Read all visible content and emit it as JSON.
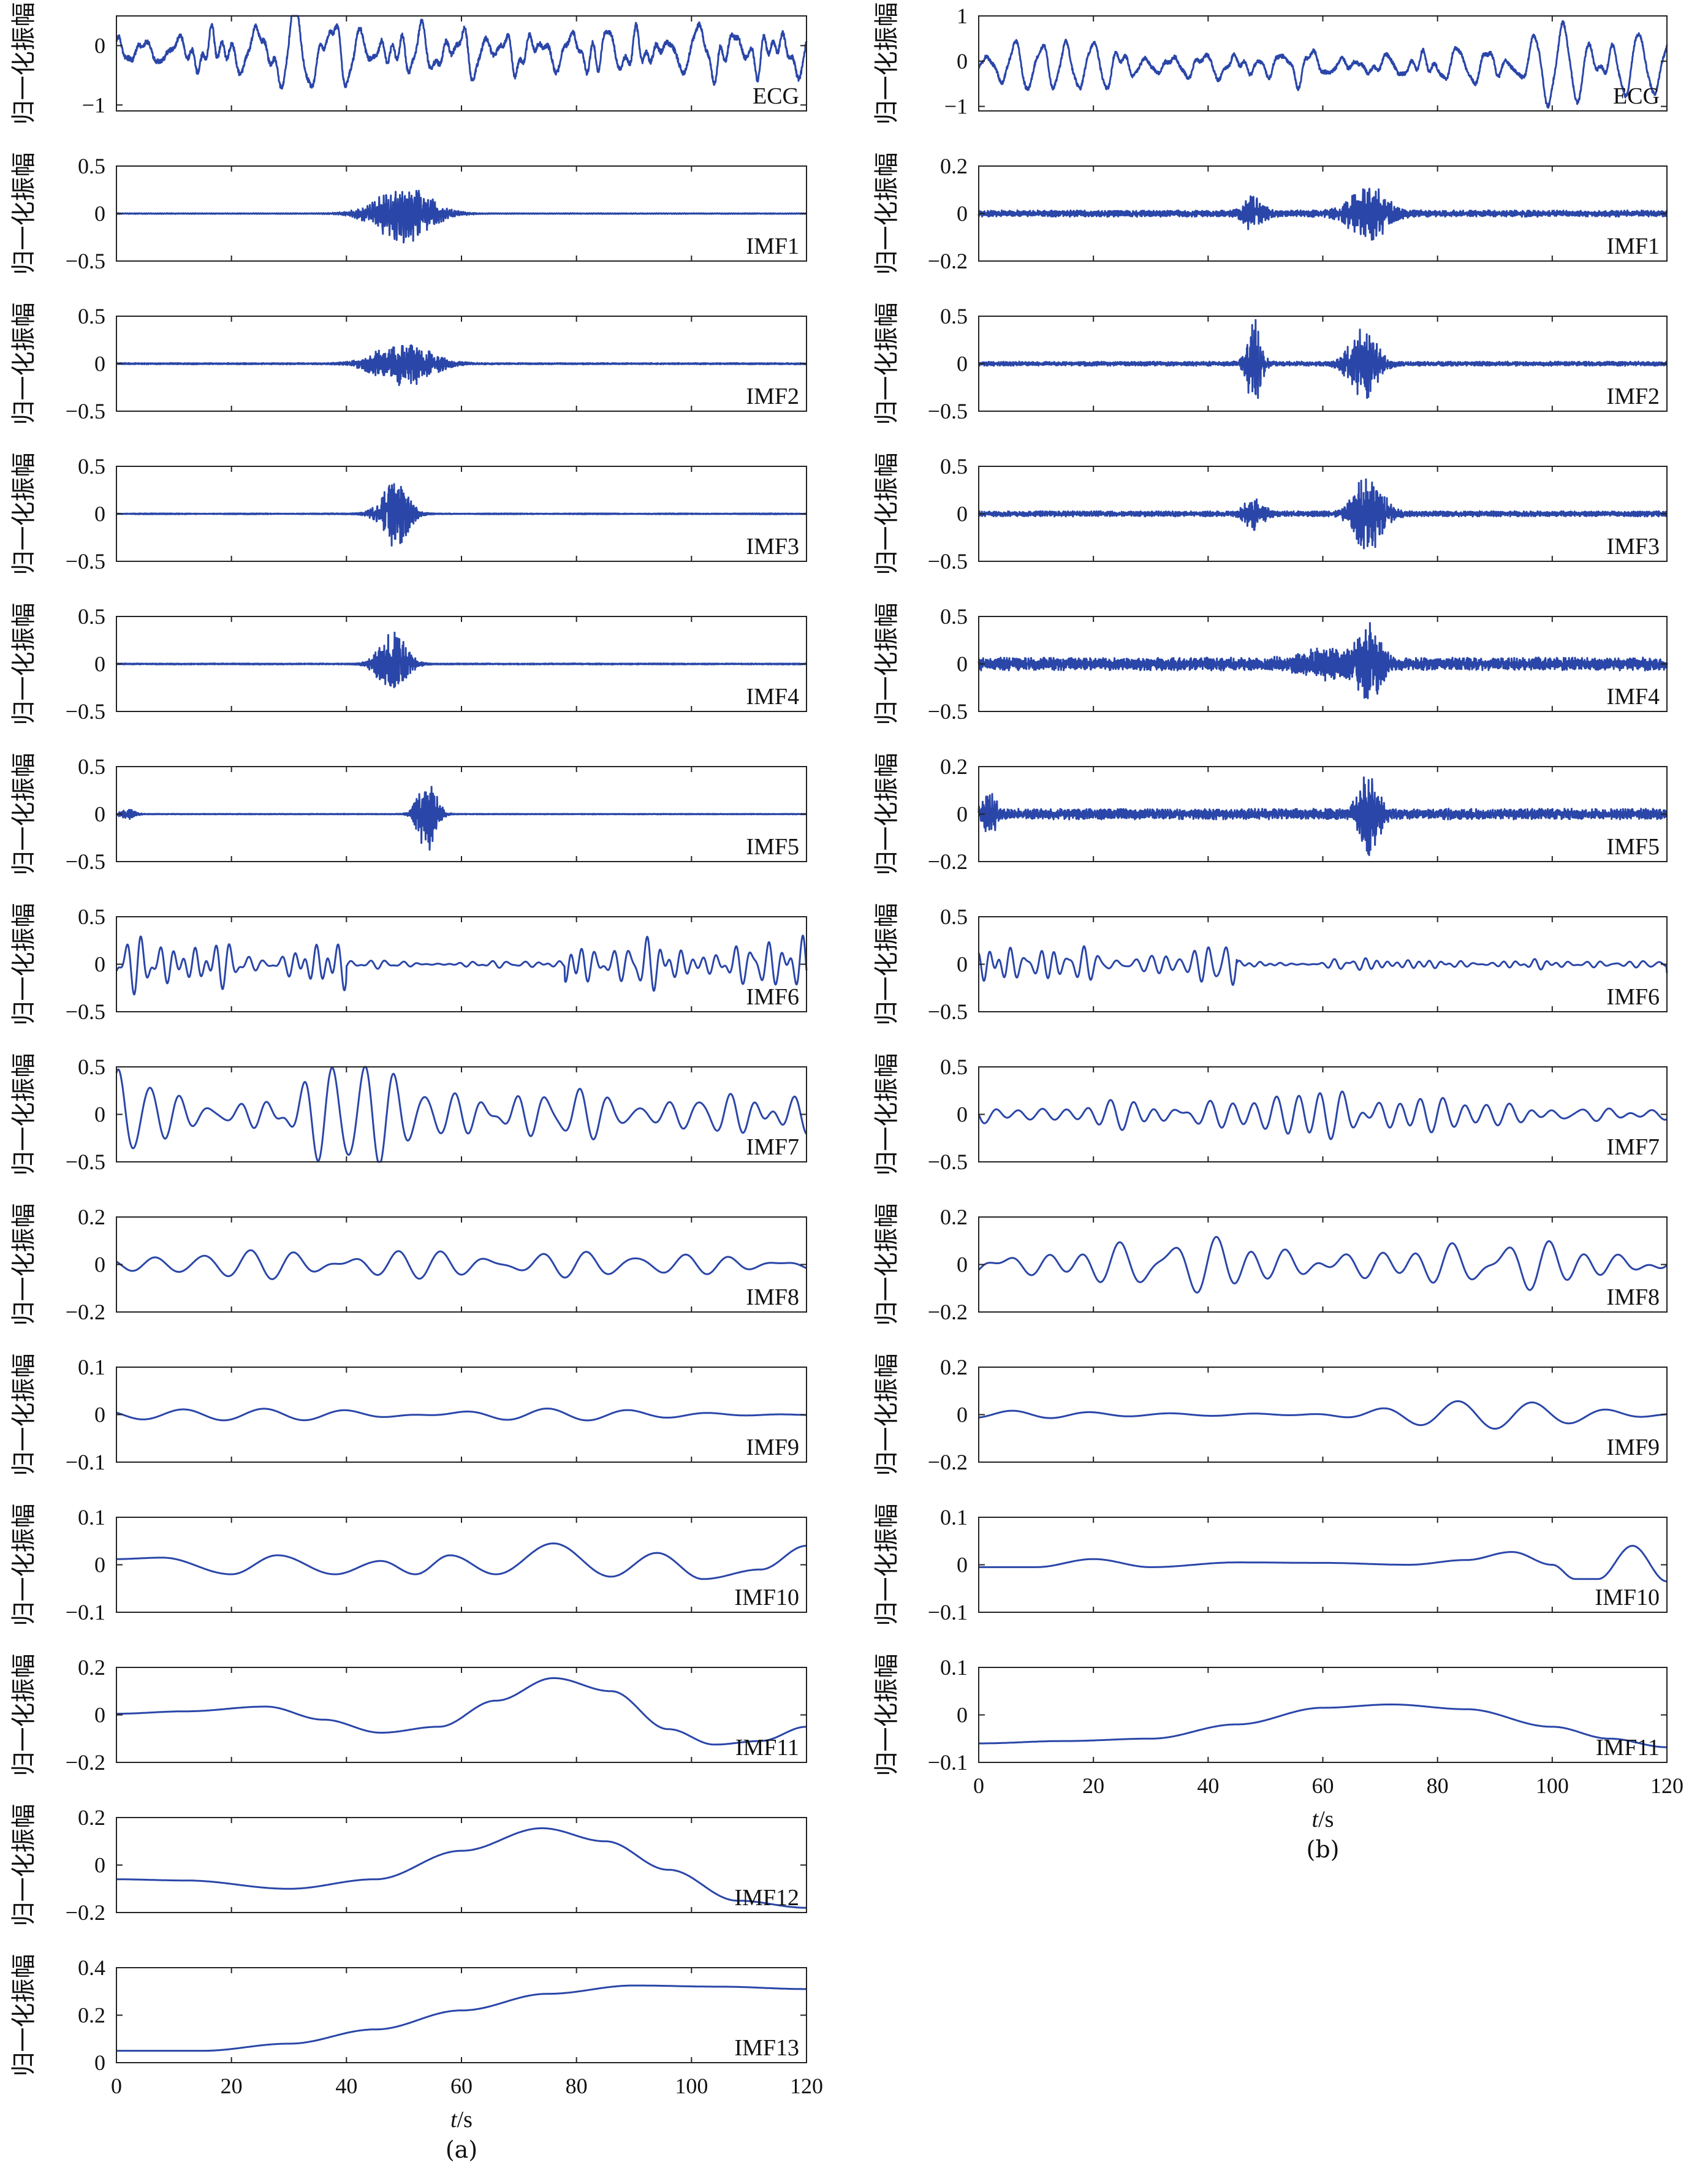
{
  "common": {
    "ylabel": "归一化振幅",
    "xlabel_italic": "t",
    "xlabel_unit": "/s",
    "xlim": [
      0,
      120
    ],
    "xticks": [
      0,
      20,
      40,
      60,
      80,
      100,
      120
    ],
    "line_color": "#2a46a8"
  },
  "columns": [
    {
      "caption": "(a)",
      "panels": [
        {
          "label": "ECG",
          "ylim": [
            -1.1,
            0.5
          ],
          "yticks": [
            {
              "v": 0,
              "t": "0"
            },
            {
              "v": -1,
              "t": "−1"
            }
          ],
          "style": "ecg",
          "amp": 0.8,
          "seed": 11
        },
        {
          "label": "IMF1",
          "ylim": [
            -0.5,
            0.5
          ],
          "yticks": [
            {
              "v": 0.5,
              "t": "0.5"
            },
            {
              "v": 0,
              "t": "0"
            },
            {
              "v": -0.5,
              "t": "−0.5"
            }
          ],
          "style": "burst",
          "bursts": [
            {
              "c": 50,
              "w": 6,
              "a": 0.28
            }
          ],
          "floor": 0.004,
          "freq": 3.2,
          "seed": 21
        },
        {
          "label": "IMF2",
          "ylim": [
            -0.5,
            0.5
          ],
          "yticks": [
            {
              "v": 0.5,
              "t": "0.5"
            },
            {
              "v": 0,
              "t": "0"
            },
            {
              "v": -0.5,
              "t": "−0.5"
            }
          ],
          "style": "burst",
          "bursts": [
            {
              "c": 50,
              "w": 6,
              "a": 0.22
            }
          ],
          "floor": 0.006,
          "freq": 2.4,
          "seed": 22
        },
        {
          "label": "IMF3",
          "ylim": [
            -0.5,
            0.5
          ],
          "yticks": [
            {
              "v": 0.5,
              "t": "0.5"
            },
            {
              "v": 0,
              "t": "0"
            },
            {
              "v": -0.5,
              "t": "−0.5"
            }
          ],
          "style": "burst",
          "bursts": [
            {
              "c": 48,
              "w": 3,
              "a": 0.38
            }
          ],
          "floor": 0.004,
          "freq": 1.8,
          "seed": 23
        },
        {
          "label": "IMF4",
          "ylim": [
            -0.5,
            0.5
          ],
          "yticks": [
            {
              "v": 0.5,
              "t": "0.5"
            },
            {
              "v": 0,
              "t": "0"
            },
            {
              "v": -0.5,
              "t": "−0.5"
            }
          ],
          "style": "burst",
          "bursts": [
            {
              "c": 48,
              "w": 3,
              "a": 0.3
            }
          ],
          "floor": 0.005,
          "freq": 1.2,
          "seed": 24
        },
        {
          "label": "IMF5",
          "ylim": [
            -0.5,
            0.5
          ],
          "yticks": [
            {
              "v": 0.5,
              "t": "0.5"
            },
            {
              "v": 0,
              "t": "0"
            },
            {
              "v": -0.5,
              "t": "−0.5"
            }
          ],
          "style": "burst",
          "bursts": [
            {
              "c": 54,
              "w": 2,
              "a": 0.38
            },
            {
              "c": 2,
              "w": 1.5,
              "a": 0.05
            }
          ],
          "floor": 0.003,
          "freq": 0.7,
          "seed": 25
        },
        {
          "label": "IMF6",
          "ylim": [
            -0.5,
            0.5
          ],
          "yticks": [
            {
              "v": 0.5,
              "t": "0.5"
            },
            {
              "v": 0,
              "t": "0"
            },
            {
              "v": -0.5,
              "t": "−0.5"
            }
          ],
          "style": "wave",
          "amp": 0.28,
          "freq": 0.42,
          "quiet": [
            40,
            78
          ],
          "quietAmp": 0.04,
          "seed": 26
        },
        {
          "label": "IMF7",
          "ylim": [
            -0.5,
            0.5
          ],
          "yticks": [
            {
              "v": 0.5,
              "t": "0.5"
            },
            {
              "v": 0,
              "t": "0"
            },
            {
              "v": -0.5,
              "t": "−0.5"
            }
          ],
          "style": "wave",
          "amp": 0.38,
          "freq": 0.2,
          "seed": 27
        },
        {
          "label": "IMF8",
          "ylim": [
            -0.2,
            0.2
          ],
          "yticks": [
            {
              "v": 0.2,
              "t": "0.2"
            },
            {
              "v": 0,
              "t": "0"
            },
            {
              "v": -0.2,
              "t": "−0.2"
            }
          ],
          "style": "wave",
          "amp": 0.09,
          "freq": 0.12,
          "seed": 28
        },
        {
          "label": "IMF9",
          "ylim": [
            -0.1,
            0.1
          ],
          "yticks": [
            {
              "v": 0.1,
              "t": "0.1"
            },
            {
              "v": 0,
              "t": "0"
            },
            {
              "v": -0.1,
              "t": "−0.1"
            }
          ],
          "style": "wave",
          "amp": 0.045,
          "freq": 0.07,
          "seed": 29
        },
        {
          "label": "IMF10",
          "ylim": [
            -0.1,
            0.1
          ],
          "yticks": [
            {
              "v": 0.1,
              "t": "0.1"
            },
            {
              "v": 0,
              "t": "0"
            },
            {
              "v": -0.1,
              "t": "−0.1"
            }
          ],
          "style": "smooth",
          "knots": [
            [
              0,
              0.012
            ],
            [
              8,
              0.015
            ],
            [
              20,
              -0.02
            ],
            [
              28,
              0.02
            ],
            [
              38,
              -0.02
            ],
            [
              46,
              0.008
            ],
            [
              52,
              -0.02
            ],
            [
              58,
              0.02
            ],
            [
              66,
              -0.02
            ],
            [
              76,
              0.045
            ],
            [
              86,
              -0.025
            ],
            [
              94,
              0.025
            ],
            [
              102,
              -0.03
            ],
            [
              112,
              -0.01
            ],
            [
              120,
              0.04
            ]
          ]
        },
        {
          "label": "IMF11",
          "ylim": [
            -0.2,
            0.2
          ],
          "yticks": [
            {
              "v": 0.2,
              "t": "0.2"
            },
            {
              "v": 0,
              "t": "0"
            },
            {
              "v": -0.2,
              "t": "−0.2"
            }
          ],
          "style": "smooth",
          "knots": [
            [
              0,
              0.005
            ],
            [
              12,
              0.015
            ],
            [
              26,
              0.035
            ],
            [
              36,
              -0.02
            ],
            [
              46,
              -0.075
            ],
            [
              56,
              -0.05
            ],
            [
              66,
              0.06
            ],
            [
              76,
              0.155
            ],
            [
              86,
              0.1
            ],
            [
              96,
              -0.06
            ],
            [
              104,
              -0.125
            ],
            [
              112,
              -0.11
            ],
            [
              120,
              -0.05
            ]
          ]
        },
        {
          "label": "IMF12",
          "ylim": [
            -0.2,
            0.2
          ],
          "yticks": [
            {
              "v": 0.2,
              "t": "0.2"
            },
            {
              "v": 0,
              "t": "0"
            },
            {
              "v": -0.2,
              "t": "−0.2"
            }
          ],
          "style": "smooth",
          "knots": [
            [
              0,
              -0.06
            ],
            [
              12,
              -0.065
            ],
            [
              30,
              -0.1
            ],
            [
              45,
              -0.06
            ],
            [
              60,
              0.06
            ],
            [
              74,
              0.155
            ],
            [
              85,
              0.1
            ],
            [
              96,
              -0.02
            ],
            [
              108,
              -0.15
            ],
            [
              120,
              -0.18
            ]
          ]
        },
        {
          "label": "IMF13",
          "ylim": [
            0,
            0.4
          ],
          "yticks": [
            {
              "v": 0.4,
              "t": "0.4"
            },
            {
              "v": 0.2,
              "t": "0.2"
            },
            {
              "v": 0,
              "t": "0"
            }
          ],
          "style": "smooth",
          "knots": [
            [
              0,
              0.05
            ],
            [
              15,
              0.05
            ],
            [
              30,
              0.08
            ],
            [
              45,
              0.14
            ],
            [
              60,
              0.22
            ],
            [
              75,
              0.29
            ],
            [
              90,
              0.325
            ],
            [
              105,
              0.32
            ],
            [
              120,
              0.31
            ]
          ]
        }
      ]
    },
    {
      "caption": "(b)",
      "panels": [
        {
          "label": "ECG",
          "ylim": [
            -1.1,
            1.0
          ],
          "yticks": [
            {
              "v": 1,
              "t": "1"
            },
            {
              "v": 0,
              "t": "0"
            },
            {
              "v": -1,
              "t": "−1"
            }
          ],
          "style": "ecg",
          "amp": 0.8,
          "seed": 31
        },
        {
          "label": "IMF1",
          "ylim": [
            -0.2,
            0.2
          ],
          "yticks": [
            {
              "v": 0.2,
              "t": "0.2"
            },
            {
              "v": 0,
              "t": "0"
            },
            {
              "v": -0.2,
              "t": "−0.2"
            }
          ],
          "style": "burst",
          "bursts": [
            {
              "c": 48,
              "w": 2,
              "a": 0.06
            },
            {
              "c": 68,
              "w": 4,
              "a": 0.1
            }
          ],
          "floor": 0.012,
          "freq": 3.0,
          "seed": 41
        },
        {
          "label": "IMF2",
          "ylim": [
            -0.5,
            0.5
          ],
          "yticks": [
            {
              "v": 0.5,
              "t": "0.5"
            },
            {
              "v": 0,
              "t": "0"
            },
            {
              "v": -0.5,
              "t": "−0.5"
            }
          ],
          "style": "burst",
          "bursts": [
            {
              "c": 48,
              "w": 1.5,
              "a": 0.4
            },
            {
              "c": 67,
              "w": 3,
              "a": 0.32
            }
          ],
          "floor": 0.02,
          "freq": 2.2,
          "seed": 42
        },
        {
          "label": "IMF3",
          "ylim": [
            -0.5,
            0.5
          ],
          "yticks": [
            {
              "v": 0.5,
              "t": "0.5"
            },
            {
              "v": 0,
              "t": "0"
            },
            {
              "v": -0.5,
              "t": "−0.5"
            }
          ],
          "style": "burst",
          "bursts": [
            {
              "c": 48,
              "w": 2,
              "a": 0.14
            },
            {
              "c": 68,
              "w": 3,
              "a": 0.38
            }
          ],
          "floor": 0.025,
          "freq": 1.6,
          "seed": 43
        },
        {
          "label": "IMF4",
          "ylim": [
            -0.5,
            0.5
          ],
          "yticks": [
            {
              "v": 0.5,
              "t": "0.5"
            },
            {
              "v": 0,
              "t": "0"
            },
            {
              "v": -0.5,
              "t": "−0.5"
            }
          ],
          "style": "burst",
          "bursts": [
            {
              "c": 68,
              "w": 2.5,
              "a": 0.34
            },
            {
              "c": 60,
              "w": 5,
              "a": 0.1
            }
          ],
          "floor": 0.06,
          "freq": 1.1,
          "seed": 44
        },
        {
          "label": "IMF5",
          "ylim": [
            -0.2,
            0.2
          ],
          "yticks": [
            {
              "v": 0.2,
              "t": "0.2"
            },
            {
              "v": 0,
              "t": "0"
            },
            {
              "v": -0.2,
              "t": "−0.2"
            }
          ],
          "style": "burst",
          "bursts": [
            {
              "c": 68,
              "w": 2,
              "a": 0.17
            },
            {
              "c": 2,
              "w": 1.5,
              "a": 0.06
            }
          ],
          "floor": 0.02,
          "freq": 0.8,
          "seed": 45
        },
        {
          "label": "IMF6",
          "ylim": [
            -0.5,
            0.5
          ],
          "yticks": [
            {
              "v": 0.5,
              "t": "0.5"
            },
            {
              "v": 0,
              "t": "0"
            },
            {
              "v": -0.5,
              "t": "−0.5"
            }
          ],
          "style": "wave",
          "amp": 0.22,
          "freq": 0.45,
          "quiet": [
            45,
            120
          ],
          "quietAmp": 0.05,
          "seed": 46
        },
        {
          "label": "IMF7",
          "ylim": [
            -0.5,
            0.5
          ],
          "yticks": [
            {
              "v": 0.5,
              "t": "0.5"
            },
            {
              "v": 0,
              "t": "0"
            },
            {
              "v": -0.5,
              "t": "−0.5"
            }
          ],
          "style": "wave",
          "amp": 0.22,
          "freq": 0.22,
          "seed": 47
        },
        {
          "label": "IMF8",
          "ylim": [
            -0.2,
            0.2
          ],
          "yticks": [
            {
              "v": 0.2,
              "t": "0.2"
            },
            {
              "v": 0,
              "t": "0"
            },
            {
              "v": -0.2,
              "t": "−0.2"
            }
          ],
          "style": "wave",
          "amp": 0.1,
          "freq": 0.13,
          "seed": 48
        },
        {
          "label": "IMF9",
          "ylim": [
            -0.2,
            0.2
          ],
          "yticks": [
            {
              "v": 0.2,
              "t": "0.2"
            },
            {
              "v": 0,
              "t": "0"
            },
            {
              "v": -0.2,
              "t": "−0.2"
            }
          ],
          "style": "wave",
          "amp": 0.05,
          "freq": 0.065,
          "seed": 49
        },
        {
          "label": "IMF10",
          "ylim": [
            -0.1,
            0.1
          ],
          "yticks": [
            {
              "v": 0.1,
              "t": "0.1"
            },
            {
              "v": 0,
              "t": "0"
            },
            {
              "v": -0.1,
              "t": "−0.1"
            }
          ],
          "style": "smooth",
          "knots": [
            [
              0,
              -0.005
            ],
            [
              10,
              -0.005
            ],
            [
              20,
              0.012
            ],
            [
              30,
              -0.005
            ],
            [
              45,
              0.005
            ],
            [
              60,
              0.004
            ],
            [
              75,
              0.0
            ],
            [
              85,
              0.01
            ],
            [
              93,
              0.027
            ],
            [
              100,
              0.0
            ],
            [
              104,
              -0.03
            ],
            [
              108,
              -0.03
            ],
            [
              114,
              0.04
            ],
            [
              120,
              -0.035
            ]
          ]
        },
        {
          "label": "IMF11",
          "ylim": [
            -0.1,
            0.1
          ],
          "yticks": [
            {
              "v": 0.1,
              "t": "0.1"
            },
            {
              "v": 0,
              "t": "0"
            },
            {
              "v": -0.1,
              "t": "−0.1"
            }
          ],
          "style": "smooth",
          "knots": [
            [
              0,
              -0.06
            ],
            [
              15,
              -0.055
            ],
            [
              30,
              -0.05
            ],
            [
              45,
              -0.02
            ],
            [
              60,
              0.015
            ],
            [
              72,
              0.022
            ],
            [
              85,
              0.012
            ],
            [
              100,
              -0.025
            ],
            [
              110,
              -0.05
            ],
            [
              120,
              -0.068
            ]
          ]
        }
      ]
    }
  ]
}
